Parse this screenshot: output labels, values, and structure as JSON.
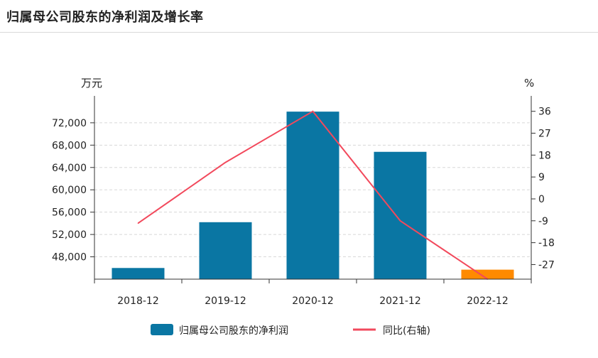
{
  "title": "归属母公司股东的净利润及增长率",
  "chart_data": {
    "type": "bar",
    "categories": [
      "2018-12",
      "2019-12",
      "2020-12",
      "2021-12",
      "2022-12"
    ],
    "series": [
      {
        "name": "归属母公司股东的净利润",
        "type": "bar",
        "axis": "left",
        "values": [
          46000,
          54200,
          74000,
          66800,
          45700
        ],
        "color": "#0a76a3",
        "highlight_color": "#ff8a00",
        "highlight_index": 4
      },
      {
        "name": "同比(右轴)",
        "type": "line",
        "axis": "right",
        "values": [
          -10,
          15,
          36,
          -9,
          -33
        ],
        "color": "#f2495c"
      }
    ],
    "y_left": {
      "unit": "万元",
      "ticks": [
        "48,000",
        "52,000",
        "56,000",
        "60,000",
        "64,000",
        "68,000",
        "72,000"
      ],
      "tick_values": [
        48000,
        52000,
        56000,
        60000,
        64000,
        68000,
        72000
      ],
      "range": [
        44000,
        75800
      ]
    },
    "y_right": {
      "unit": "%",
      "ticks": [
        "-27",
        "-18",
        "-9",
        "0",
        "9",
        "18",
        "27",
        "36"
      ],
      "tick_values": [
        -27,
        -18,
        -9,
        0,
        9,
        18,
        27,
        36
      ],
      "range": [
        -33,
        40
      ]
    },
    "grid": true,
    "legend_position": "bottom-center"
  }
}
